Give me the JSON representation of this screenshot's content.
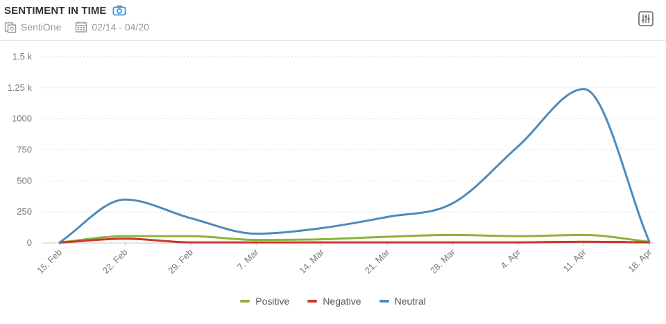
{
  "header": {
    "title": "SENTIMENT IN TIME",
    "source": "SentiOne",
    "date_range": "02/14 - 04/20"
  },
  "icons": {
    "camera": "camera-icon",
    "source": "source-icon",
    "calendar": "calendar-icon",
    "settings": "settings-sliders-icon"
  },
  "colors": {
    "positive": "#8db23a",
    "negative": "#c9372c",
    "neutral": "#4f8ab9",
    "accent": "#3b8fd9",
    "grid": "#dcdcdc",
    "tick_text": "#777777"
  },
  "chart_data": {
    "type": "line",
    "categories": [
      "15. Feb",
      "22. Feb",
      "29. Feb",
      "7. Mar",
      "14. Mar",
      "21. Mar",
      "28. Mar",
      "4. Apr",
      "11. Apr",
      "18. Apr"
    ],
    "y_tick_labels": [
      "0",
      "250",
      "500",
      "750",
      "1000",
      "1.25 k",
      "1.5 k"
    ],
    "y_ticks": [
      0,
      250,
      500,
      750,
      1000,
      1250,
      1500
    ],
    "ylim": [
      0,
      1500
    ],
    "grid": true,
    "legend_position": "bottom",
    "series": [
      {
        "name": "Positive",
        "values": [
          5,
          55,
          55,
          25,
          30,
          50,
          65,
          55,
          65,
          10
        ]
      },
      {
        "name": "Negative",
        "values": [
          3,
          35,
          5,
          5,
          5,
          5,
          5,
          5,
          10,
          5
        ]
      },
      {
        "name": "Neutral",
        "values": [
          5,
          350,
          200,
          75,
          120,
          210,
          320,
          780,
          1240,
          10
        ]
      }
    ]
  }
}
